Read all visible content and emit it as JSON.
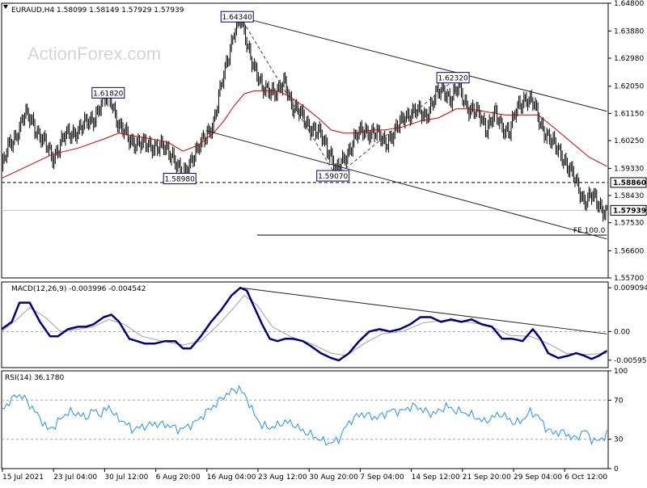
{
  "header": {
    "symbol": "EURAUD,H4",
    "ohlc": "1.58099 1.58149 1.57929 1.57939",
    "watermark": "ActionForex.com"
  },
  "colors": {
    "frame": "#000000",
    "bars": "#000000",
    "ma": "#cc0000",
    "macd_main": "#000080",
    "macd_signal": "#a0a0a0",
    "rsi": "#1e90ff",
    "trend": "#202020",
    "level": "#606060"
  },
  "chart_data": [
    {
      "type": "ohlc",
      "panel": "price",
      "yticks": [
        "1.64800",
        "1.63880",
        "1.62980",
        "1.62050",
        "1.61150",
        "1.60250",
        "1.59330",
        "1.58430",
        "1.57530",
        "1.56600",
        "1.55700"
      ],
      "ylim": [
        1.557,
        1.648
      ],
      "xlabels": [
        "15 Jul 2021",
        "23 Jul 04:00",
        "30 Jul 12:00",
        "6 Aug 20:00",
        "16 Aug 04:00",
        "23 Aug 12:00",
        "30 Aug 20:00",
        "7 Sep 04:00",
        "14 Sep 12:00",
        "21 Sep 20:00",
        "29 Sep 04:00",
        "6 Oct 12:00"
      ],
      "close_path": [
        [
          0,
          1.593
        ],
        [
          5,
          1.6
        ],
        [
          12,
          1.605
        ],
        [
          18,
          1.611
        ],
        [
          24,
          1.609
        ],
        [
          30,
          1.604
        ],
        [
          40,
          1.597
        ],
        [
          50,
          1.604
        ],
        [
          60,
          1.606
        ],
        [
          72,
          1.61
        ],
        [
          80,
          1.616
        ],
        [
          86,
          1.616
        ],
        [
          92,
          1.607
        ],
        [
          100,
          1.603
        ],
        [
          110,
          1.601
        ],
        [
          118,
          1.601
        ],
        [
          126,
          1.6
        ],
        [
          134,
          1.598
        ],
        [
          142,
          1.59
        ],
        [
          150,
          1.598
        ],
        [
          158,
          1.602
        ],
        [
          166,
          1.609
        ],
        [
          174,
          1.624
        ],
        [
          182,
          1.639
        ],
        [
          187,
          1.642
        ],
        [
          192,
          1.635
        ],
        [
          198,
          1.627
        ],
        [
          204,
          1.619
        ],
        [
          210,
          1.62
        ],
        [
          216,
          1.618
        ],
        [
          222,
          1.622
        ],
        [
          228,
          1.614
        ],
        [
          234,
          1.611
        ],
        [
          242,
          1.607
        ],
        [
          250,
          1.604
        ],
        [
          258,
          1.598
        ],
        [
          262,
          1.592
        ],
        [
          268,
          1.596
        ],
        [
          276,
          1.603
        ],
        [
          284,
          1.606
        ],
        [
          292,
          1.605
        ],
        [
          300,
          1.602
        ],
        [
          308,
          1.605
        ],
        [
          316,
          1.611
        ],
        [
          324,
          1.612
        ],
        [
          332,
          1.611
        ],
        [
          340,
          1.617
        ],
        [
          346,
          1.62
        ],
        [
          352,
          1.616
        ],
        [
          358,
          1.62
        ],
        [
          366,
          1.613
        ],
        [
          374,
          1.611
        ],
        [
          380,
          1.607
        ],
        [
          386,
          1.611
        ],
        [
          392,
          1.607
        ],
        [
          398,
          1.606
        ],
        [
          404,
          1.613
        ],
        [
          410,
          1.617
        ],
        [
          416,
          1.615
        ],
        [
          422,
          1.608
        ],
        [
          428,
          1.604
        ],
        [
          434,
          1.6
        ],
        [
          440,
          1.597
        ],
        [
          446,
          1.592
        ],
        [
          450,
          1.588
        ],
        [
          456,
          1.583
        ],
        [
          462,
          1.584
        ],
        [
          468,
          1.581
        ],
        [
          474,
          1.579
        ]
      ],
      "ma_path": [
        [
          0,
          1.59
        ],
        [
          20,
          1.594
        ],
        [
          40,
          1.598
        ],
        [
          60,
          1.6
        ],
        [
          80,
          1.603
        ],
        [
          92,
          1.605
        ],
        [
          104,
          1.604
        ],
        [
          118,
          1.603
        ],
        [
          130,
          1.602
        ],
        [
          142,
          1.599
        ],
        [
          154,
          1.601
        ],
        [
          166,
          1.605
        ],
        [
          174,
          1.609
        ],
        [
          182,
          1.614
        ],
        [
          190,
          1.618
        ],
        [
          198,
          1.619
        ],
        [
          206,
          1.619
        ],
        [
          216,
          1.619
        ],
        [
          226,
          1.617
        ],
        [
          236,
          1.614
        ],
        [
          248,
          1.61
        ],
        [
          258,
          1.606
        ],
        [
          268,
          1.605
        ],
        [
          278,
          1.605
        ],
        [
          290,
          1.606
        ],
        [
          300,
          1.606
        ],
        [
          314,
          1.607
        ],
        [
          328,
          1.609
        ],
        [
          342,
          1.61
        ],
        [
          356,
          1.613
        ],
        [
          366,
          1.613
        ],
        [
          380,
          1.612
        ],
        [
          394,
          1.611
        ],
        [
          410,
          1.611
        ],
        [
          420,
          1.611
        ],
        [
          432,
          1.607
        ],
        [
          446,
          1.602
        ],
        [
          460,
          1.597
        ],
        [
          474,
          1.594
        ]
      ],
      "labels": [
        {
          "text": "1.64340",
          "x": 187,
          "y": 1.6434
        },
        {
          "text": "1.61820",
          "x": 86,
          "y": 1.6182
        },
        {
          "text": "1.58980",
          "x": 142,
          "y": 1.5898
        },
        {
          "text": "1.59070",
          "x": 262,
          "y": 1.5907
        },
        {
          "text": "1.62320",
          "x": 356,
          "y": 1.6232
        }
      ],
      "trendlines": [
        {
          "from": [
            187,
            1.6434
          ],
          "to": [
            474,
            1.6122
          ]
        },
        {
          "from": [
            160,
            1.6058
          ],
          "to": [
            474,
            1.5699
          ]
        }
      ],
      "zigzag": [
        [
          187,
          1.6434
        ],
        [
          262,
          1.5907
        ],
        [
          356,
          1.6232
        ]
      ],
      "levels": [
        {
          "value": 1.5886,
          "label": "1.58860",
          "style": "dashed",
          "box": "outline"
        },
        {
          "value": 1.57939,
          "label": "1.57939",
          "style": "solid",
          "box": "filled"
        }
      ],
      "fe_line": {
        "value": 1.5712,
        "from": 200,
        "to": 474,
        "label": "FE 100.0"
      }
    },
    {
      "type": "line",
      "panel": "macd",
      "title": "MACD(12,26,9) -0.003996 -0.004542",
      "yticks": [
        "0.009094",
        "0.00",
        "-0.005956"
      ],
      "ylim": [
        -0.0075,
        0.0103
      ],
      "main_path": [
        [
          0,
          0.0005
        ],
        [
          8,
          0.002
        ],
        [
          14,
          0.006
        ],
        [
          22,
          0.006
        ],
        [
          30,
          0.002
        ],
        [
          38,
          -0.001
        ],
        [
          44,
          -0.001
        ],
        [
          52,
          0.0005
        ],
        [
          60,
          0.001
        ],
        [
          66,
          0.001
        ],
        [
          72,
          0.0015
        ],
        [
          80,
          0.003
        ],
        [
          86,
          0.0035
        ],
        [
          92,
          0.002
        ],
        [
          100,
          -0.0015
        ],
        [
          106,
          -0.002
        ],
        [
          112,
          -0.0025
        ],
        [
          120,
          -0.0025
        ],
        [
          128,
          -0.002
        ],
        [
          136,
          -0.002
        ],
        [
          142,
          -0.0035
        ],
        [
          148,
          -0.0035
        ],
        [
          156,
          -0.001
        ],
        [
          164,
          0.002
        ],
        [
          172,
          0.0045
        ],
        [
          180,
          0.0075
        ],
        [
          187,
          0.0091
        ],
        [
          192,
          0.0085
        ],
        [
          198,
          0.005
        ],
        [
          204,
          0.0015
        ],
        [
          210,
          -0.0015
        ],
        [
          216,
          -0.002
        ],
        [
          222,
          -0.0015
        ],
        [
          228,
          -0.0015
        ],
        [
          236,
          -0.002
        ],
        [
          242,
          -0.003
        ],
        [
          250,
          -0.0045
        ],
        [
          258,
          -0.0055
        ],
        [
          264,
          -0.006
        ],
        [
          272,
          -0.0045
        ],
        [
          280,
          -0.002
        ],
        [
          288,
          0
        ],
        [
          296,
          0.0005
        ],
        [
          304,
          0
        ],
        [
          312,
          0.0005
        ],
        [
          320,
          0.0015
        ],
        [
          328,
          0.003
        ],
        [
          336,
          0.003
        ],
        [
          344,
          0.002
        ],
        [
          352,
          0.0025
        ],
        [
          360,
          0.002
        ],
        [
          368,
          0.0025
        ],
        [
          376,
          0.0015
        ],
        [
          384,
          0.001
        ],
        [
          392,
          -0.0015
        ],
        [
          400,
          -0.0015
        ],
        [
          408,
          -0.002
        ],
        [
          416,
          0.0005
        ],
        [
          422,
          -0.0015
        ],
        [
          428,
          -0.0045
        ],
        [
          436,
          -0.0055
        ],
        [
          444,
          -0.005
        ],
        [
          450,
          -0.0045
        ],
        [
          456,
          -0.005
        ],
        [
          462,
          -0.0057
        ],
        [
          468,
          -0.005
        ],
        [
          474,
          -0.004
        ]
      ],
      "signal_path": [
        [
          0,
          0.0
        ],
        [
          12,
          0.0025
        ],
        [
          22,
          0.005
        ],
        [
          34,
          0.003
        ],
        [
          46,
          0.0
        ],
        [
          60,
          0.0005
        ],
        [
          72,
          0.001
        ],
        [
          84,
          0.0025
        ],
        [
          96,
          0.0015
        ],
        [
          110,
          -0.001
        ],
        [
          126,
          -0.002
        ],
        [
          142,
          -0.0028
        ],
        [
          156,
          -0.002
        ],
        [
          170,
          0.0015
        ],
        [
          182,
          0.005
        ],
        [
          190,
          0.0075
        ],
        [
          200,
          0.0055
        ],
        [
          212,
          0.001
        ],
        [
          226,
          -0.001
        ],
        [
          242,
          -0.0025
        ],
        [
          258,
          -0.0045
        ],
        [
          270,
          -0.005
        ],
        [
          284,
          -0.0025
        ],
        [
          298,
          -0.0005
        ],
        [
          314,
          0.0
        ],
        [
          330,
          0.0018
        ],
        [
          346,
          0.0023
        ],
        [
          364,
          0.002
        ],
        [
          382,
          0.0012
        ],
        [
          398,
          -0.0008
        ],
        [
          414,
          -0.001
        ],
        [
          428,
          -0.0025
        ],
        [
          442,
          -0.0045
        ],
        [
          458,
          -0.0048
        ],
        [
          474,
          -0.0045
        ]
      ],
      "trendline": {
        "from": [
          187,
          0.0091
        ],
        "to": [
          474,
          -0.0005
        ]
      }
    },
    {
      "type": "line",
      "panel": "rsi",
      "title": "RSI(14) 36.1780",
      "yticks": [
        "100",
        "70",
        "30",
        "0"
      ],
      "ylim": [
        0,
        100
      ],
      "levels": [
        70,
        30
      ],
      "path": [
        [
          0,
          60
        ],
        [
          6,
          68
        ],
        [
          12,
          76
        ],
        [
          18,
          72
        ],
        [
          24,
          62
        ],
        [
          30,
          52
        ],
        [
          36,
          40
        ],
        [
          42,
          44
        ],
        [
          48,
          54
        ],
        [
          54,
          58
        ],
        [
          60,
          56
        ],
        [
          66,
          52
        ],
        [
          72,
          60
        ],
        [
          78,
          55
        ],
        [
          84,
          64
        ],
        [
          90,
          52
        ],
        [
          96,
          48
        ],
        [
          102,
          40
        ],
        [
          108,
          42
        ],
        [
          114,
          44
        ],
        [
          120,
          46
        ],
        [
          126,
          45
        ],
        [
          132,
          44
        ],
        [
          138,
          40
        ],
        [
          144,
          42
        ],
        [
          150,
          46
        ],
        [
          156,
          52
        ],
        [
          162,
          60
        ],
        [
          168,
          66
        ],
        [
          174,
          74
        ],
        [
          180,
          79
        ],
        [
          186,
          82
        ],
        [
          192,
          72
        ],
        [
          198,
          55
        ],
        [
          204,
          44
        ],
        [
          210,
          42
        ],
        [
          216,
          44
        ],
        [
          222,
          48
        ],
        [
          228,
          46
        ],
        [
          234,
          40
        ],
        [
          240,
          36
        ],
        [
          246,
          32
        ],
        [
          252,
          28
        ],
        [
          258,
          26
        ],
        [
          264,
          30
        ],
        [
          270,
          44
        ],
        [
          276,
          52
        ],
        [
          282,
          56
        ],
        [
          288,
          54
        ],
        [
          294,
          52
        ],
        [
          300,
          56
        ],
        [
          306,
          60
        ],
        [
          312,
          58
        ],
        [
          318,
          62
        ],
        [
          324,
          64
        ],
        [
          330,
          60
        ],
        [
          336,
          56
        ],
        [
          342,
          58
        ],
        [
          348,
          64
        ],
        [
          354,
          60
        ],
        [
          360,
          58
        ],
        [
          366,
          56
        ],
        [
          372,
          52
        ],
        [
          378,
          48
        ],
        [
          384,
          52
        ],
        [
          390,
          56
        ],
        [
          396,
          52
        ],
        [
          402,
          46
        ],
        [
          408,
          50
        ],
        [
          414,
          58
        ],
        [
          420,
          54
        ],
        [
          426,
          42
        ],
        [
          432,
          36
        ],
        [
          438,
          38
        ],
        [
          444,
          34
        ],
        [
          450,
          30
        ],
        [
          456,
          40
        ],
        [
          462,
          30
        ],
        [
          468,
          28
        ],
        [
          474,
          36
        ]
      ]
    }
  ]
}
